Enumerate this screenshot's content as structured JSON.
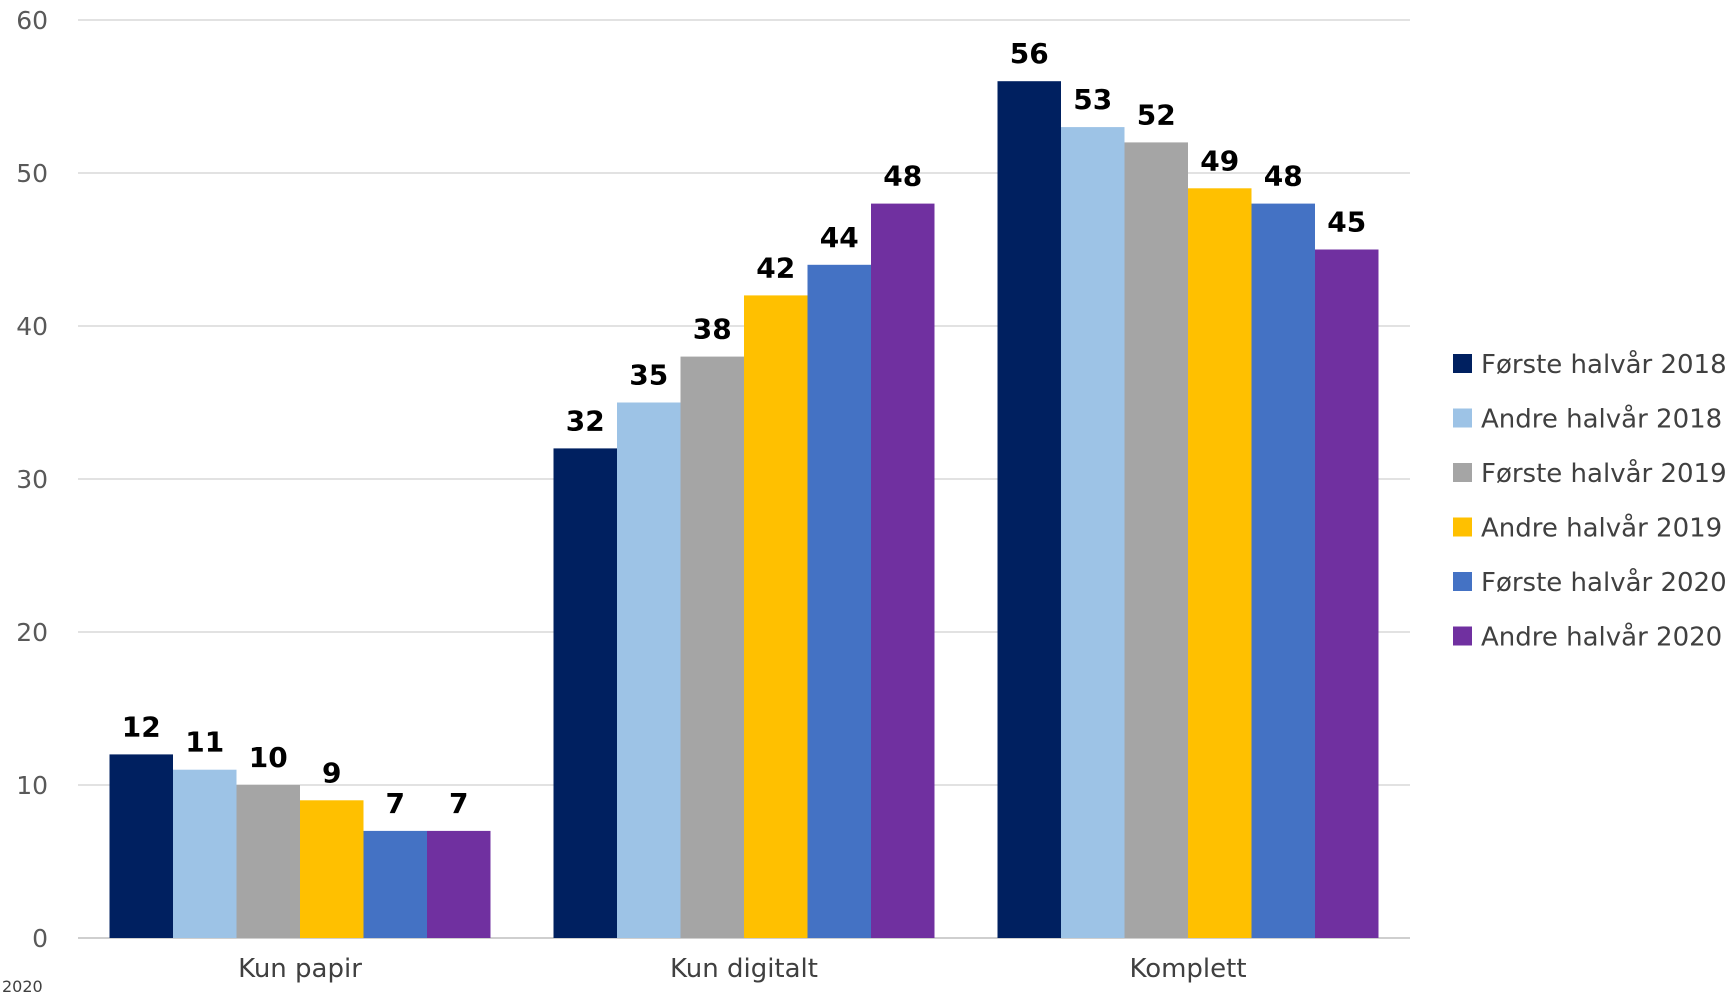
{
  "chart_data": {
    "type": "bar",
    "categories": [
      "Kun papir",
      "Kun digitalt",
      "Komplett"
    ],
    "series": [
      {
        "name": "Første halvår 2018",
        "color": "#002060",
        "values": [
          12,
          32,
          56
        ]
      },
      {
        "name": "Andre halvår 2018",
        "color": "#9DC3E6",
        "values": [
          11,
          35,
          53
        ]
      },
      {
        "name": "Første halvår 2019",
        "color": "#A5A5A5",
        "values": [
          10,
          38,
          52
        ]
      },
      {
        "name": "Andre halvår 2019",
        "color": "#FFC000",
        "values": [
          9,
          42,
          49
        ]
      },
      {
        "name": "Første halvår 2020",
        "color": "#4472C4",
        "values": [
          7,
          44,
          48
        ]
      },
      {
        "name": "Andre halvår 2020",
        "color": "#7030A0",
        "values": [
          7,
          48,
          45
        ]
      }
    ],
    "y_ticks": [
      "0",
      "10",
      "20",
      "30",
      "40",
      "50",
      "60"
    ],
    "ylim": [
      0,
      60
    ],
    "grid": true,
    "legend_position": "right",
    "data_labels": true
  },
  "footnote": "2020"
}
